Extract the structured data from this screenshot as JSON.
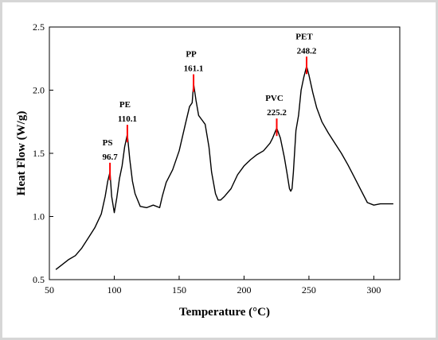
{
  "chart_data": {
    "type": "line",
    "title": "",
    "xlabel": "Temperature (°C)",
    "ylabel": "Heat Flow (W/g)",
    "xlim": [
      50,
      320
    ],
    "ylim": [
      0.5,
      2.5
    ],
    "xticks": [
      50,
      100,
      150,
      200,
      250,
      300
    ],
    "yticks": [
      0.5,
      1.0,
      1.5,
      2.0,
      2.5
    ],
    "xtick_labels": [
      "50",
      "100",
      "150",
      "200",
      "250",
      "300"
    ],
    "ytick_labels": [
      "0.5",
      "1.0",
      "1.5",
      "2.0",
      "2.5"
    ],
    "grid": false,
    "line_color": "#000000",
    "marker_color": "#ff0000",
    "series": [
      {
        "x": [
          55,
          60,
          65,
          70,
          75,
          80,
          85,
          90,
          93,
          95,
          96.7,
          98,
          100,
          102,
          104,
          106,
          108,
          110.1,
          112,
          114,
          116,
          120,
          125,
          130,
          135,
          137,
          140,
          145,
          150,
          155,
          158,
          160,
          161.1,
          163,
          165,
          170,
          173,
          175,
          178,
          180,
          182,
          185,
          190,
          195,
          200,
          205,
          210,
          215,
          220,
          222,
          225.2,
          228,
          231,
          233,
          235,
          236,
          237,
          238,
          240,
          242,
          244,
          246,
          248.2,
          250,
          253,
          256,
          260,
          265,
          270,
          275,
          280,
          285,
          290,
          295,
          300,
          305,
          315
        ],
        "y": [
          0.58,
          0.62,
          0.66,
          0.69,
          0.75,
          0.83,
          0.91,
          1.02,
          1.16,
          1.28,
          1.35,
          1.16,
          1.03,
          1.15,
          1.3,
          1.4,
          1.55,
          1.65,
          1.45,
          1.28,
          1.18,
          1.08,
          1.07,
          1.09,
          1.07,
          1.16,
          1.27,
          1.37,
          1.52,
          1.74,
          1.87,
          1.9,
          2.05,
          1.92,
          1.8,
          1.73,
          1.55,
          1.35,
          1.18,
          1.13,
          1.13,
          1.16,
          1.22,
          1.33,
          1.4,
          1.45,
          1.49,
          1.52,
          1.58,
          1.62,
          1.7,
          1.62,
          1.47,
          1.35,
          1.22,
          1.2,
          1.22,
          1.35,
          1.68,
          1.8,
          2.0,
          2.1,
          2.19,
          2.12,
          1.98,
          1.86,
          1.75,
          1.66,
          1.58,
          1.5,
          1.41,
          1.31,
          1.21,
          1.11,
          1.09,
          1.1,
          1.1
        ]
      }
    ],
    "annotations": [
      {
        "label": "PS",
        "value": "96.7",
        "x": 96.7,
        "y": 1.35
      },
      {
        "label": "PE",
        "value": "110.1",
        "x": 110.1,
        "y": 1.65
      },
      {
        "label": "PP",
        "value": "161.1",
        "x": 161.1,
        "y": 2.05
      },
      {
        "label": "PVC",
        "value": "225.2",
        "x": 225.2,
        "y": 1.7
      },
      {
        "label": "PET",
        "value": "248.2",
        "x": 248.2,
        "y": 2.19
      }
    ]
  }
}
